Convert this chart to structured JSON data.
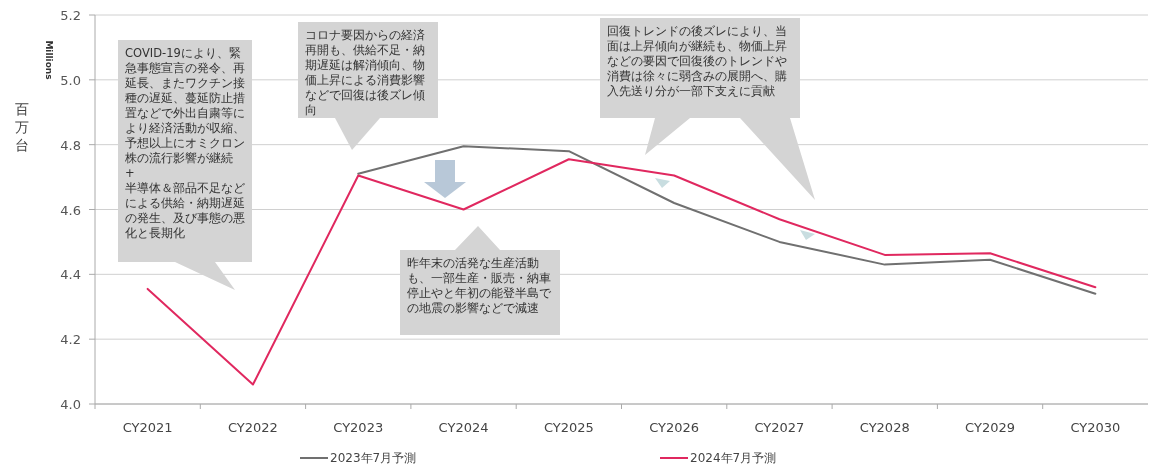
{
  "chart_data": {
    "type": "line",
    "categories": [
      "CY2021",
      "CY2022",
      "CY2023",
      "CY2024",
      "CY2025",
      "CY2026",
      "CY2027",
      "CY2028",
      "CY2029",
      "CY2030"
    ],
    "series": [
      {
        "name": "2023年7月予測",
        "color": "#707070",
        "values": [
          null,
          null,
          4.71,
          4.795,
          4.78,
          4.62,
          4.5,
          4.43,
          4.445,
          4.34
        ]
      },
      {
        "name": "2024年7月予測",
        "color": "#e0285f",
        "values": [
          4.355,
          4.06,
          4.705,
          4.6,
          4.755,
          4.705,
          4.57,
          4.46,
          4.465,
          4.36
        ]
      }
    ],
    "ylabel": "百万台",
    "ylim": [
      4.0,
      5.2
    ],
    "yticks": [
      {
        "value": 4.0,
        "label": "4.0"
      },
      4.2,
      4.4,
      4.6,
      4.8,
      {
        "value": 5.0,
        "label": "5.0"
      },
      5.2
    ],
    "grid": "y",
    "legend": "bottom",
    "marker": "none",
    "line_style": "solid",
    "annotations": [
      "Millions",
      "COVID-19により、緊急事態宣言の発令、再延長、またワクチン接種の遅延、蔓延防止措置などで外出自粛等により経済活動が収縮、予想以上にオミクロン株の流行影響が継続\n+\n半導体＆部品不足などによる供給・納期遅延の発生、及び事態の悪化と長期化",
      "コロナ要因からの経済再開も、供給不足・納期遅延は解消傾向、物価上昇による消費影響などで回復は後ズレ傾向",
      "昨年末の活発な生産活動も、一部生産・販売・納車停止やと年初の能登半島での地震の影響などで減速",
      "回復トレンドの後ズレにより、当面は上昇傾向が継続も、物価上昇などの要因で回復後のトレンドや消費は徐々に弱含みの展開へ、購入先送り分が一部下支えに貢献"
    ]
  }
}
